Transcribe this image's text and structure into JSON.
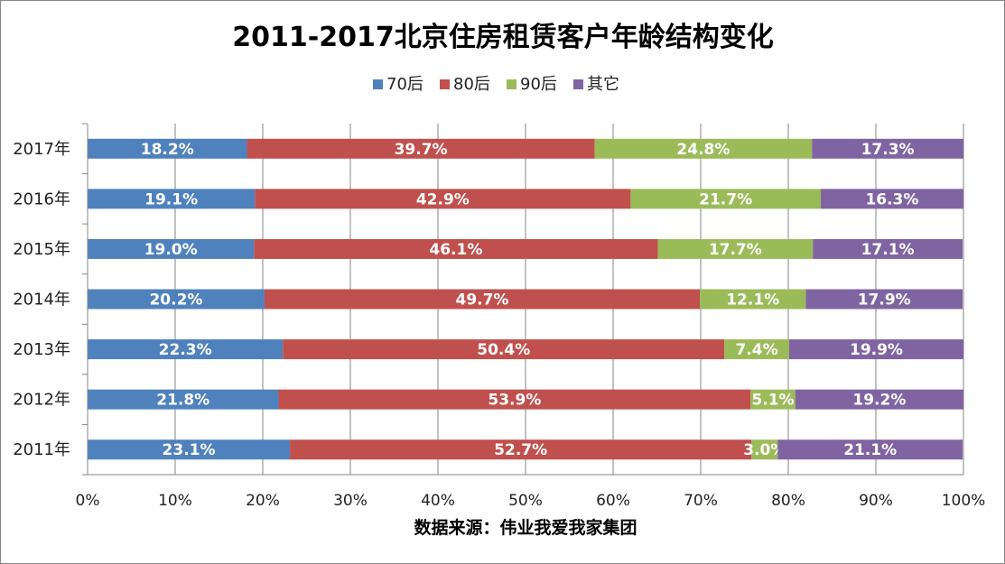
{
  "chart_data": {
    "type": "bar",
    "orientation": "horizontal",
    "stacked": "percent",
    "title": "2011-2017北京住房租赁客户年龄结构变化",
    "xlabel": "数据来源：伟业我爱我家集团",
    "ylabel": "",
    "xlim": [
      0,
      100
    ],
    "x_ticks": [
      "0%",
      "10%",
      "20%",
      "30%",
      "40%",
      "50%",
      "60%",
      "70%",
      "80%",
      "90%",
      "100%"
    ],
    "categories": [
      "2011年",
      "2012年",
      "2013年",
      "2014年",
      "2015年",
      "2016年",
      "2017年"
    ],
    "legend_position": "top",
    "grid": true,
    "series": [
      {
        "name": "70后",
        "color": "#4F81BD",
        "values": [
          23.1,
          21.8,
          22.3,
          20.2,
          19.0,
          19.1,
          18.2
        ],
        "labels": [
          "23.1%",
          "21.8%",
          "22.3%",
          "20.2%",
          "19.0%",
          "19.1%",
          "18.2%"
        ]
      },
      {
        "name": "80后",
        "color": "#C0504D",
        "values": [
          52.7,
          53.9,
          50.4,
          49.7,
          46.1,
          42.9,
          39.7
        ],
        "labels": [
          "52.7%",
          "53.9%",
          "50.4%",
          "49.7%",
          "46.1%",
          "42.9%",
          "39.7%"
        ]
      },
      {
        "name": "90后",
        "color": "#9BBB59",
        "values": [
          3.0,
          5.1,
          7.4,
          12.1,
          17.7,
          21.7,
          24.8
        ],
        "labels": [
          "3.0%",
          "5.1%",
          "7.4%",
          "12.1%",
          "17.7%",
          "21.7%",
          "24.8%"
        ]
      },
      {
        "name": "其它",
        "color": "#8064A2",
        "values": [
          21.1,
          19.2,
          19.9,
          17.9,
          17.1,
          16.3,
          17.3
        ],
        "labels": [
          "21.1%",
          "19.2%",
          "19.9%",
          "17.9%",
          "17.1%",
          "16.3%",
          "17.3%"
        ]
      }
    ]
  }
}
